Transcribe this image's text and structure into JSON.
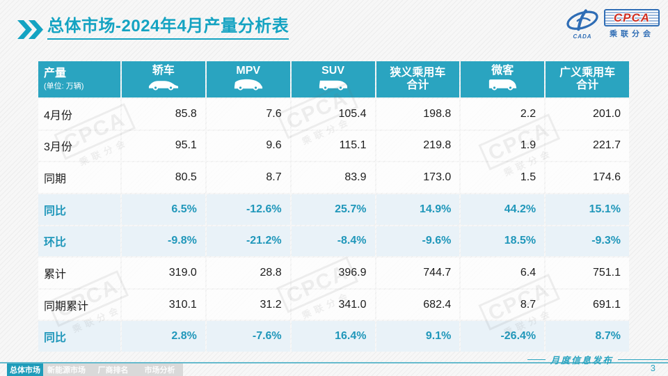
{
  "header": {
    "title_strong": "总体市场",
    "title_rest": "-2024年4月产量分析表"
  },
  "logo": {
    "cada": "CADA",
    "cpca": "CPCA",
    "subtitle": "乘联分会"
  },
  "watermark": {
    "line1": "CPCA",
    "line2": "乘联分会"
  },
  "chart_data": {
    "type": "table",
    "title": "总体市场-2024年4月产量分析表",
    "corner_label": "产量",
    "corner_unit": "(单位: 万辆)",
    "columns": [
      "轿车",
      "MPV",
      "SUV",
      "狭义乘用车合计",
      "微客",
      "广义乘用车合计"
    ],
    "column_icons": [
      "sedan-icon",
      "mpv-icon",
      "suv-icon",
      null,
      "microvan-icon",
      null
    ],
    "rows": [
      {
        "label": "4月份",
        "style": "value",
        "values": [
          85.8,
          7.6,
          105.4,
          198.8,
          2.2,
          201.0
        ]
      },
      {
        "label": "3月份",
        "style": "value",
        "values": [
          95.1,
          9.6,
          115.1,
          219.8,
          1.9,
          221.7
        ]
      },
      {
        "label": "同期",
        "style": "value",
        "values": [
          80.5,
          8.7,
          83.9,
          173.0,
          1.5,
          174.6
        ]
      },
      {
        "label": "同比",
        "style": "percent",
        "values": [
          "6.5%",
          "-12.6%",
          "25.7%",
          "14.9%",
          "44.2%",
          "15.1%"
        ]
      },
      {
        "label": "环比",
        "style": "percent",
        "values": [
          "-9.8%",
          "-21.2%",
          "-8.4%",
          "-9.6%",
          "18.5%",
          "-9.3%"
        ]
      },
      {
        "label": "累计",
        "style": "value",
        "values": [
          319.0,
          28.8,
          396.9,
          744.7,
          6.4,
          751.1
        ]
      },
      {
        "label": "同期累计",
        "style": "value",
        "values": [
          310.1,
          31.2,
          341.0,
          682.4,
          8.7,
          691.1
        ]
      },
      {
        "label": "同比",
        "style": "percent",
        "values": [
          "2.8%",
          "-7.6%",
          "16.4%",
          "9.1%",
          "-26.4%",
          "8.7%"
        ]
      }
    ]
  },
  "footer": {
    "tabs": [
      {
        "label": "总体市场",
        "active": true
      },
      {
        "label": "新能源市场",
        "active": false
      },
      {
        "label": "厂商排名",
        "active": false
      },
      {
        "label": "市场分析",
        "active": false
      }
    ],
    "publication": "月度信息发布",
    "page_number": "3"
  },
  "colors": {
    "accent": "#14a3c2",
    "table_header_bg": "#2aa4c0",
    "percent_row_bg": "#e9f2f8",
    "percent_text": "#2097ba",
    "logo_blue": "#2f6db5",
    "logo_red": "#cf2e21"
  }
}
